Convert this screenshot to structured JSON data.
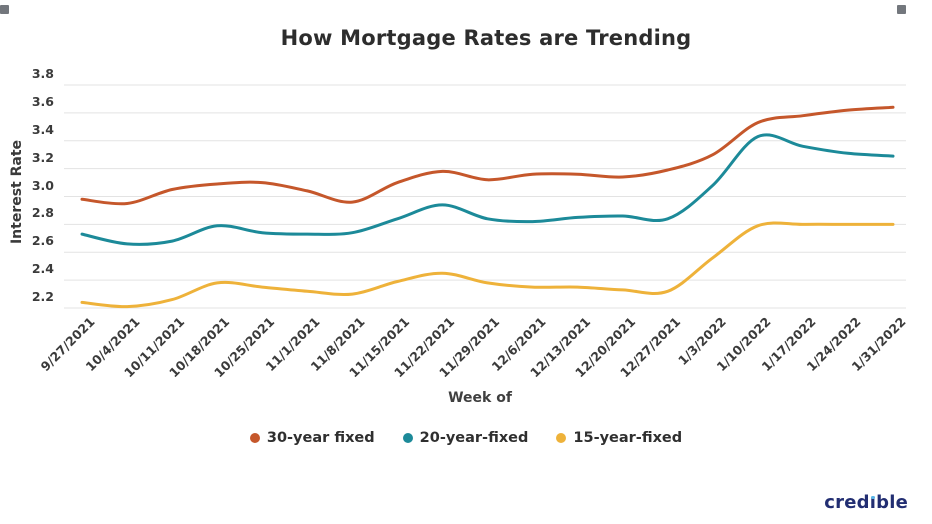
{
  "chart_data": {
    "type": "line",
    "title": "How Mortgage Rates are Trending",
    "xlabel": "Week of",
    "ylabel": "Interest Rate",
    "x": [
      "9/27/2021",
      "10/4/2021",
      "10/11/2021",
      "10/18/2021",
      "10/25/2021",
      "11/1/2021",
      "11/8/2021",
      "11/15/2021",
      "11/22/2021",
      "11/29/2021",
      "12/6/2021",
      "12/13/2021",
      "12/20/2021",
      "12/27/2021",
      "1/3/2022",
      "1/10/2022",
      "1/17/2022",
      "1/24/2022",
      "1/31/2022"
    ],
    "series": [
      {
        "name": "30-year fixed",
        "color": "#c5572b",
        "values": [
          2.98,
          2.95,
          3.05,
          3.09,
          3.1,
          3.04,
          2.96,
          3.1,
          3.18,
          3.12,
          3.16,
          3.16,
          3.14,
          3.19,
          3.3,
          3.53,
          3.58,
          3.62,
          3.64
        ]
      },
      {
        "name": "20-year-fixed",
        "color": "#1c8a99",
        "values": [
          2.73,
          2.66,
          2.68,
          2.79,
          2.74,
          2.73,
          2.74,
          2.84,
          2.94,
          2.84,
          2.82,
          2.85,
          2.86,
          2.84,
          3.08,
          3.43,
          3.36,
          3.31,
          3.29
        ]
      },
      {
        "name": "15-year-fixed",
        "color": "#eeb23a",
        "values": [
          2.24,
          2.21,
          2.26,
          2.38,
          2.35,
          2.32,
          2.3,
          2.39,
          2.45,
          2.38,
          2.35,
          2.35,
          2.33,
          2.32,
          2.56,
          2.79,
          2.8,
          2.8,
          2.8
        ]
      }
    ],
    "yticks": [
      "3.8",
      "3.6",
      "3.4",
      "3.2",
      "3.0",
      "2.8",
      "2.6",
      "2.4",
      "2.2"
    ],
    "ylim": [
      2.2,
      3.8
    ],
    "grid": "horizontal",
    "grid_color": "#e3e3e3",
    "legend_position": "bottom"
  },
  "branding": {
    "logo_text": "credible",
    "logo_color": "#222e72"
  }
}
